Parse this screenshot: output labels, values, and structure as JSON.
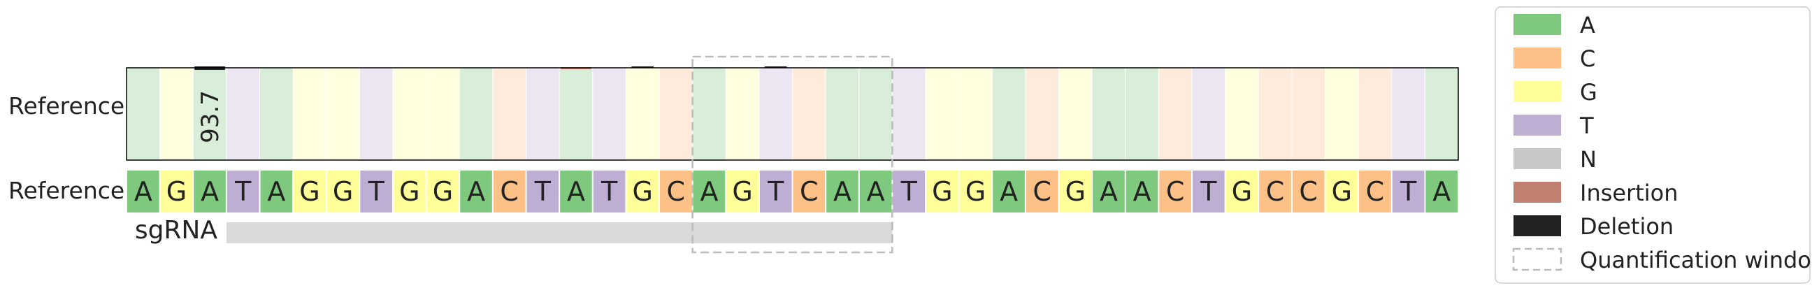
{
  "chart_data": {
    "type": "heatmap",
    "row_labels": {
      "alleles": "Reference",
      "sequence": "Reference",
      "guide": "sgRNA"
    },
    "reference_sequence": [
      "A",
      "G",
      "A",
      "T",
      "A",
      "G",
      "G",
      "T",
      "G",
      "G",
      "A",
      "C",
      "T",
      "A",
      "T",
      "G",
      "C",
      "A",
      "G",
      "T",
      "C",
      "A",
      "A",
      "T",
      "G",
      "G",
      "A",
      "C",
      "G",
      "A",
      "A",
      "C",
      "T",
      "G",
      "C",
      "C",
      "G",
      "C",
      "T",
      "A"
    ],
    "annotations": [
      {
        "position_index": 2,
        "label": "93.7"
      }
    ],
    "deletion_marks": [
      2,
      15,
      19
    ],
    "insertion_marks": [
      13
    ],
    "sgrna_range": [
      3,
      23
    ],
    "quantification_window": [
      17,
      23
    ],
    "legend": {
      "placement": "right",
      "entries": [
        {
          "label": "A",
          "color": "#7fc97f",
          "kind": "box"
        },
        {
          "label": "C",
          "color": "#fdc086",
          "kind": "box"
        },
        {
          "label": "G",
          "color": "#ffff99",
          "kind": "box"
        },
        {
          "label": "T",
          "color": "#beaed4",
          "kind": "box"
        },
        {
          "label": "N",
          "color": "#c8c8c8",
          "kind": "box"
        },
        {
          "label": "Insertion",
          "color": "#c08070",
          "kind": "box"
        },
        {
          "label": "Deletion",
          "color": "#222222",
          "kind": "box"
        },
        {
          "label": "Quantification window",
          "color": "#bbbbbb",
          "kind": "dashed"
        }
      ]
    }
  },
  "colors": {
    "A": "#7fc97f",
    "C": "#fdc086",
    "G": "#ffff99",
    "T": "#beaed4",
    "N": "#c8c8c8",
    "A_light": "#d8eed8",
    "C_light": "#ffebdb",
    "G_light": "#ffffe0",
    "T_light": "#ebe6f2",
    "insertion": "#c08070",
    "deletion": "#222222",
    "sgrna_bar": "#d9d9d9",
    "window_stroke": "#bbbbbb"
  }
}
